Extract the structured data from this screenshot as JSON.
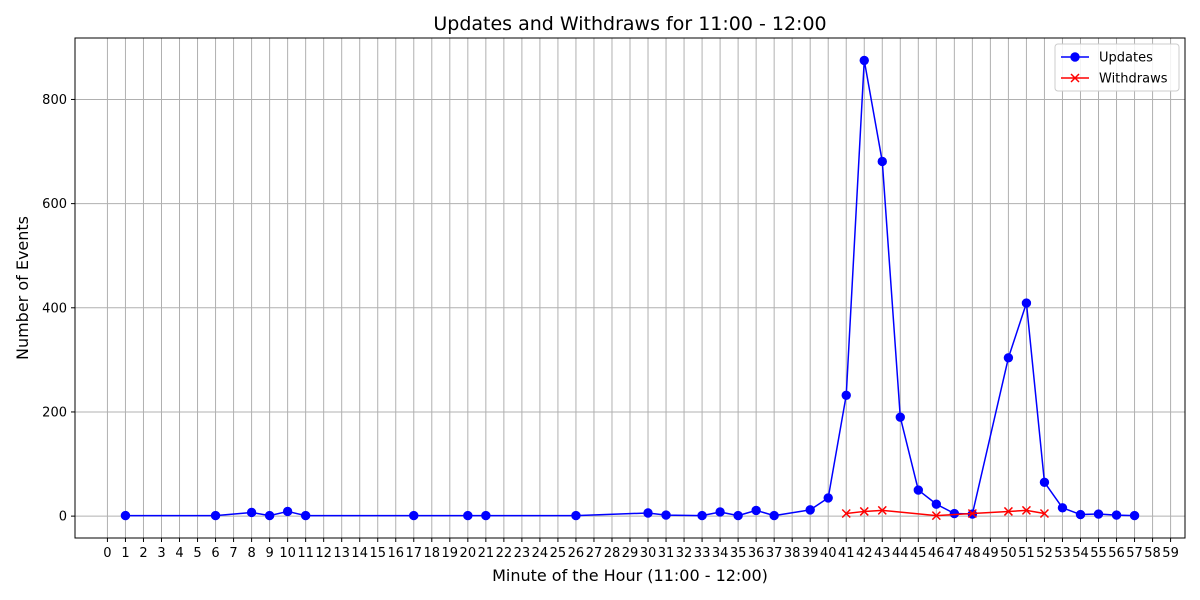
{
  "chart_data": {
    "type": "line",
    "title": "Updates and Withdraws for 11:00 - 12:00",
    "xlabel": "Minute of the Hour (11:00 - 12:00)",
    "ylabel": "Number of Events",
    "xlim": [
      -1.8,
      59.8
    ],
    "ylim": [
      -42,
      918
    ],
    "xticks": [
      0,
      1,
      2,
      3,
      4,
      5,
      6,
      7,
      8,
      9,
      10,
      11,
      12,
      13,
      14,
      15,
      16,
      17,
      18,
      19,
      20,
      21,
      22,
      23,
      24,
      25,
      26,
      27,
      28,
      29,
      30,
      31,
      32,
      33,
      34,
      35,
      36,
      37,
      38,
      39,
      40,
      41,
      42,
      43,
      44,
      45,
      46,
      47,
      48,
      49,
      50,
      51,
      52,
      53,
      54,
      55,
      56,
      57,
      58,
      59
    ],
    "yticks": [
      0,
      200,
      400,
      600,
      800
    ],
    "grid": true,
    "legend_position": "top-right",
    "series": [
      {
        "name": "Updates",
        "color": "#0000ff",
        "marker": "circle",
        "x": [
          1,
          6,
          8,
          9,
          10,
          11,
          17,
          20,
          21,
          26,
          30,
          31,
          33,
          34,
          35,
          36,
          37,
          39,
          40,
          41,
          42,
          43,
          44,
          45,
          46,
          47,
          48,
          50,
          51,
          52,
          53,
          54,
          55,
          56,
          57
        ],
        "y": [
          1,
          1,
          7,
          1,
          9,
          1,
          1,
          1,
          1,
          1,
          6,
          2,
          1,
          8,
          1,
          11,
          1,
          12,
          35,
          232,
          875,
          681,
          190,
          50,
          23,
          5,
          4,
          304,
          409,
          65,
          16,
          3,
          4,
          2,
          1
        ]
      },
      {
        "name": "Withdraws",
        "color": "#ff0000",
        "marker": "x",
        "x": [
          41,
          42,
          43,
          46,
          48,
          50,
          51,
          52
        ],
        "y": [
          5,
          9,
          11,
          1,
          5,
          9,
          11,
          5
        ]
      }
    ]
  }
}
